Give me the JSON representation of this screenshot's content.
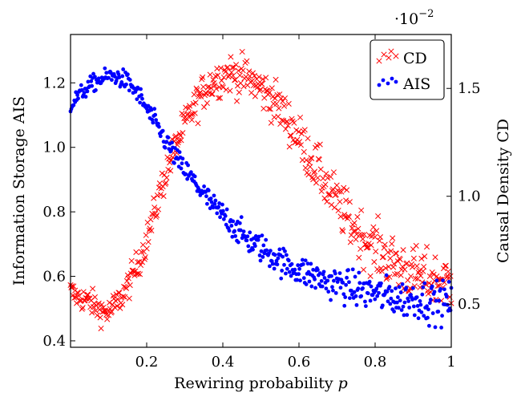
{
  "chart_data": {
    "type": "scatter",
    "title": "",
    "xlabel_main": "Rewiring probability ",
    "xlabel_var": "p",
    "ylabel_left": "Information Storage AIS",
    "ylabel_right": "Causal Density CD",
    "exponent_base": "·10",
    "exponent_power": "−2",
    "xlim": [
      0.0,
      1.0
    ],
    "ylim_left": [
      0.38,
      1.35
    ],
    "ylim_right": [
      0.3,
      1.75
    ],
    "xticks": [
      0.2,
      0.4,
      0.6,
      0.8,
      1.0
    ],
    "xtick_labels": [
      "0.2",
      "0.4",
      "0.6",
      "0.8",
      "1"
    ],
    "yticks_left": [
      0.4,
      0.6,
      0.8,
      1.0,
      1.2
    ],
    "ytick_labels_left": [
      "0.4",
      "0.6",
      "0.8",
      "1.0",
      "1.2"
    ],
    "yticks_right": [
      0.5,
      1.0,
      1.5
    ],
    "ytick_labels_right": [
      "0.5",
      "1.0",
      "1.5"
    ],
    "grid": false,
    "legend_position": "top-right",
    "series": [
      {
        "name": "CD",
        "axis": "right",
        "marker": "x",
        "color": "#ff0000",
        "x": [
          0.0,
          0.02,
          0.04,
          0.06,
          0.08,
          0.1,
          0.12,
          0.14,
          0.16,
          0.18,
          0.2,
          0.22,
          0.24,
          0.26,
          0.28,
          0.3,
          0.32,
          0.34,
          0.36,
          0.38,
          0.4,
          0.42,
          0.44,
          0.46,
          0.48,
          0.5,
          0.52,
          0.54,
          0.56,
          0.58,
          0.6,
          0.62,
          0.64,
          0.66,
          0.68,
          0.7,
          0.72,
          0.74,
          0.76,
          0.78,
          0.8,
          0.82,
          0.84,
          0.86,
          0.88,
          0.9,
          0.92,
          0.94,
          0.96,
          0.98,
          1.0
        ],
        "y": [
          0.56,
          0.53,
          0.52,
          0.5,
          0.47,
          0.46,
          0.5,
          0.55,
          0.62,
          0.7,
          0.8,
          0.92,
          1.05,
          1.16,
          1.25,
          1.33,
          1.4,
          1.46,
          1.51,
          1.54,
          1.56,
          1.57,
          1.56,
          1.55,
          1.53,
          1.5,
          1.47,
          1.43,
          1.38,
          1.33,
          1.27,
          1.21,
          1.15,
          1.09,
          1.03,
          0.97,
          0.92,
          0.87,
          0.83,
          0.79,
          0.76,
          0.73,
          0.7,
          0.68,
          0.66,
          0.64,
          0.63,
          0.62,
          0.61,
          0.61,
          0.6
        ]
      },
      {
        "name": "AIS",
        "axis": "left",
        "marker": "dot",
        "color": "#0000ff",
        "x": [
          0.0,
          0.02,
          0.04,
          0.06,
          0.08,
          0.1,
          0.12,
          0.14,
          0.16,
          0.18,
          0.2,
          0.22,
          0.24,
          0.26,
          0.28,
          0.3,
          0.32,
          0.34,
          0.36,
          0.38,
          0.4,
          0.42,
          0.44,
          0.46,
          0.48,
          0.5,
          0.52,
          0.54,
          0.56,
          0.58,
          0.6,
          0.62,
          0.64,
          0.66,
          0.68,
          0.7,
          0.72,
          0.74,
          0.76,
          0.78,
          0.8,
          0.82,
          0.84,
          0.86,
          0.88,
          0.9,
          0.92,
          0.94,
          0.96,
          0.98,
          1.0
        ],
        "y": [
          1.13,
          1.16,
          1.18,
          1.2,
          1.21,
          1.22,
          1.22,
          1.21,
          1.19,
          1.16,
          1.12,
          1.08,
          1.04,
          1.0,
          0.96,
          0.93,
          0.9,
          0.87,
          0.84,
          0.81,
          0.79,
          0.77,
          0.74,
          0.72,
          0.7,
          0.69,
          0.67,
          0.66,
          0.64,
          0.63,
          0.62,
          0.61,
          0.6,
          0.59,
          0.58,
          0.58,
          0.57,
          0.56,
          0.56,
          0.55,
          0.55,
          0.54,
          0.54,
          0.53,
          0.53,
          0.53,
          0.53,
          0.52,
          0.52,
          0.52,
          0.52
        ]
      }
    ]
  }
}
